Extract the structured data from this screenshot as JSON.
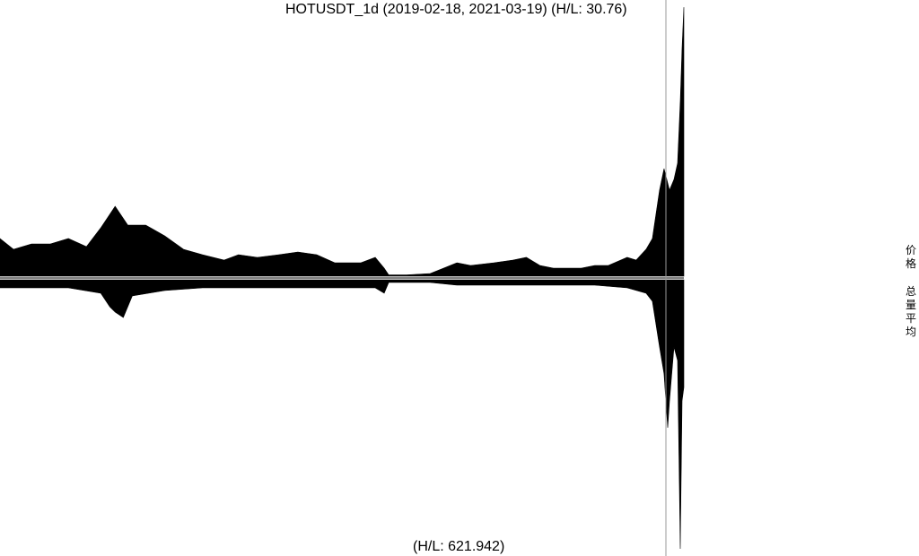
{
  "chart": {
    "title": "HOTUSDT_1d (2019-02-18, 2021-03-19) (H/L: 30.76)",
    "bottom_caption": "(H/L: 621.942)",
    "side_label_price": "价格",
    "side_label_volume": "总量平均"
  },
  "chart_data": {
    "type": "area",
    "title": "HOTUSDT_1d (2019-02-18, 2021-03-19) (H/L: 30.76)",
    "x_range": [
      "2019-02-18",
      "2021-03-19"
    ],
    "colors": {
      "fill": "#000000",
      "separator": "#999999",
      "background": "#ffffff"
    },
    "series": [
      {
        "name": "价格",
        "hl_ratio": 30.76,
        "points": [
          [
            "2019-02-18",
            0.14
          ],
          [
            "2019-03-05",
            0.1
          ],
          [
            "2019-03-25",
            0.12
          ],
          [
            "2019-04-15",
            0.12
          ],
          [
            "2019-05-05",
            0.14
          ],
          [
            "2019-05-25",
            0.11
          ],
          [
            "2019-06-10",
            0.18
          ],
          [
            "2019-06-20",
            0.23
          ],
          [
            "2019-06-26",
            0.26
          ],
          [
            "2019-07-10",
            0.19
          ],
          [
            "2019-07-30",
            0.19
          ],
          [
            "2019-08-20",
            0.15
          ],
          [
            "2019-09-10",
            0.1
          ],
          [
            "2019-10-01",
            0.08
          ],
          [
            "2019-10-25",
            0.06
          ],
          [
            "2019-11-10",
            0.08
          ],
          [
            "2019-12-01",
            0.07
          ],
          [
            "2019-12-25",
            0.08
          ],
          [
            "2020-01-15",
            0.09
          ],
          [
            "2020-02-05",
            0.08
          ],
          [
            "2020-02-25",
            0.05
          ],
          [
            "2020-03-10",
            0.05
          ],
          [
            "2020-03-25",
            0.05
          ],
          [
            "2020-04-10",
            0.07
          ],
          [
            "2020-04-20",
            0.03
          ],
          [
            "2020-04-25",
            0.005
          ],
          [
            "2020-05-15",
            0.005
          ],
          [
            "2020-06-10",
            0.01
          ],
          [
            "2020-06-25",
            0.03
          ],
          [
            "2020-07-10",
            0.05
          ],
          [
            "2020-07-25",
            0.04
          ],
          [
            "2020-08-20",
            0.05
          ],
          [
            "2020-09-10",
            0.06
          ],
          [
            "2020-09-25",
            0.07
          ],
          [
            "2020-10-10",
            0.04
          ],
          [
            "2020-10-25",
            0.03
          ],
          [
            "2020-11-10",
            0.03
          ],
          [
            "2020-11-25",
            0.03
          ],
          [
            "2020-12-10",
            0.04
          ],
          [
            "2020-12-25",
            0.04
          ],
          [
            "2021-01-15",
            0.07
          ],
          [
            "2021-01-25",
            0.06
          ],
          [
            "2021-02-05",
            0.1
          ],
          [
            "2021-02-12",
            0.14
          ],
          [
            "2021-02-20",
            0.32
          ],
          [
            "2021-02-25",
            0.4
          ],
          [
            "2021-03-03",
            0.32
          ],
          [
            "2021-03-08",
            0.36
          ],
          [
            "2021-03-12",
            0.42
          ],
          [
            "2021-03-15",
            0.65
          ],
          [
            "2021-03-17",
            0.85
          ],
          [
            "2021-03-19",
            1.0
          ]
        ]
      },
      {
        "name": "总量平均",
        "hl_ratio": 621.942,
        "points": [
          [
            "2019-02-18",
            0.03
          ],
          [
            "2019-03-25",
            0.03
          ],
          [
            "2019-05-05",
            0.03
          ],
          [
            "2019-06-10",
            0.05
          ],
          [
            "2019-06-20",
            0.1
          ],
          [
            "2019-06-26",
            0.12
          ],
          [
            "2019-07-05",
            0.14
          ],
          [
            "2019-07-15",
            0.06
          ],
          [
            "2019-08-20",
            0.04
          ],
          [
            "2019-10-01",
            0.03
          ],
          [
            "2019-12-01",
            0.03
          ],
          [
            "2020-02-25",
            0.03
          ],
          [
            "2020-04-10",
            0.03
          ],
          [
            "2020-04-20",
            0.05
          ],
          [
            "2020-04-25",
            0.01
          ],
          [
            "2020-06-10",
            0.01
          ],
          [
            "2020-07-10",
            0.02
          ],
          [
            "2020-09-10",
            0.02
          ],
          [
            "2020-12-10",
            0.02
          ],
          [
            "2021-01-15",
            0.03
          ],
          [
            "2021-02-05",
            0.05
          ],
          [
            "2021-02-12",
            0.08
          ],
          [
            "2021-02-20",
            0.25
          ],
          [
            "2021-02-25",
            0.35
          ],
          [
            "2021-03-01",
            0.55
          ],
          [
            "2021-03-03",
            0.45
          ],
          [
            "2021-03-08",
            0.25
          ],
          [
            "2021-03-12",
            0.3
          ],
          [
            "2021-03-15",
            1.0
          ],
          [
            "2021-03-17",
            0.45
          ],
          [
            "2021-03-19",
            0.4
          ]
        ]
      }
    ],
    "grid": false,
    "legend": "none"
  }
}
